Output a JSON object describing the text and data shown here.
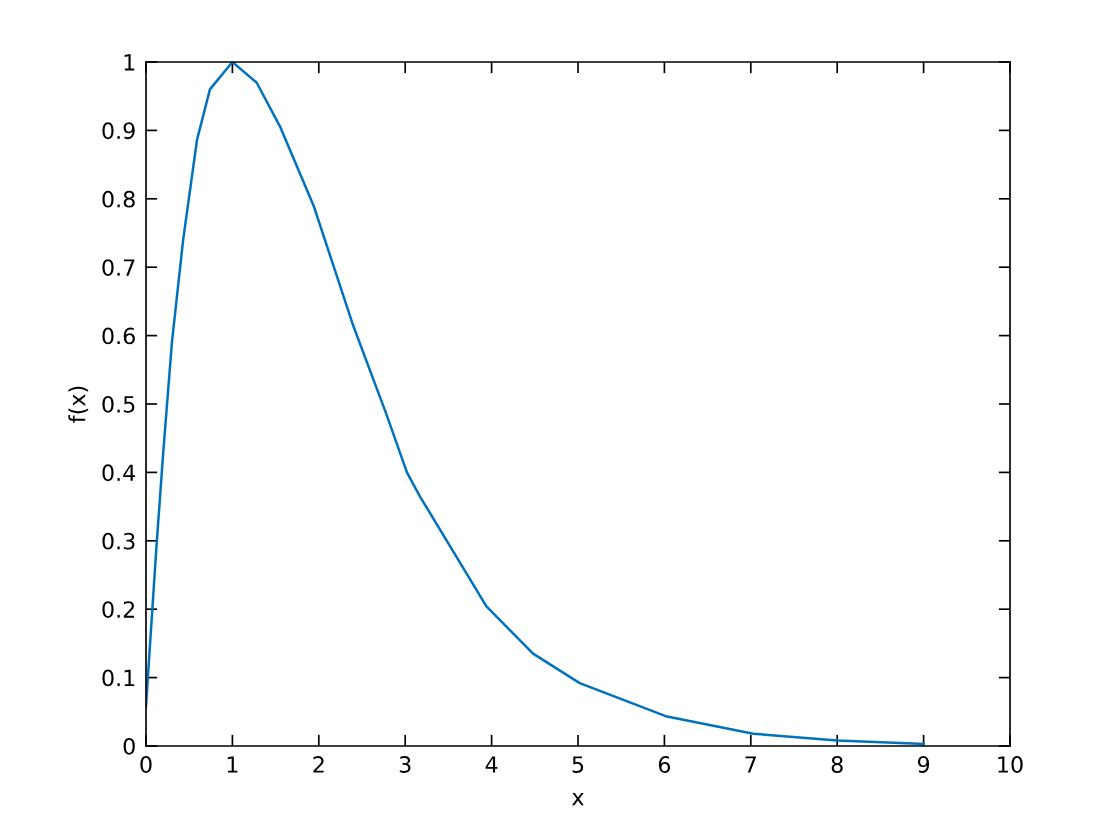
{
  "chart_data": {
    "type": "line",
    "xlabel": "x",
    "ylabel": "f(x)",
    "x": [
      0.0,
      0.05,
      0.12,
      0.2,
      0.3,
      0.43,
      0.59,
      0.74,
      1.0,
      1.28,
      1.55,
      1.94,
      2.4,
      2.78,
      3.02,
      3.17,
      3.94,
      4.48,
      5.02,
      6.03,
      7.03,
      8.0,
      9.0
    ],
    "series": [
      {
        "color": "#0072bd",
        "values": [
          0.058,
          0.155,
          0.29,
          0.43,
          0.59,
          0.74,
          0.886,
          0.96,
          1.0,
          0.97,
          0.906,
          0.79,
          0.614,
          0.486,
          0.4,
          0.365,
          0.204,
          0.135,
          0.092,
          0.043,
          0.018,
          0.008,
          0.003
        ]
      }
    ],
    "xlim": [
      0,
      10
    ],
    "ylim": [
      0,
      1
    ],
    "xticks": [
      0,
      1,
      2,
      3,
      4,
      5,
      6,
      7,
      8,
      9,
      10
    ],
    "yticks": [
      0,
      0.1,
      0.2,
      0.3,
      0.4,
      0.5,
      0.6,
      0.7,
      0.8,
      0.9,
      1
    ],
    "grid": false
  }
}
